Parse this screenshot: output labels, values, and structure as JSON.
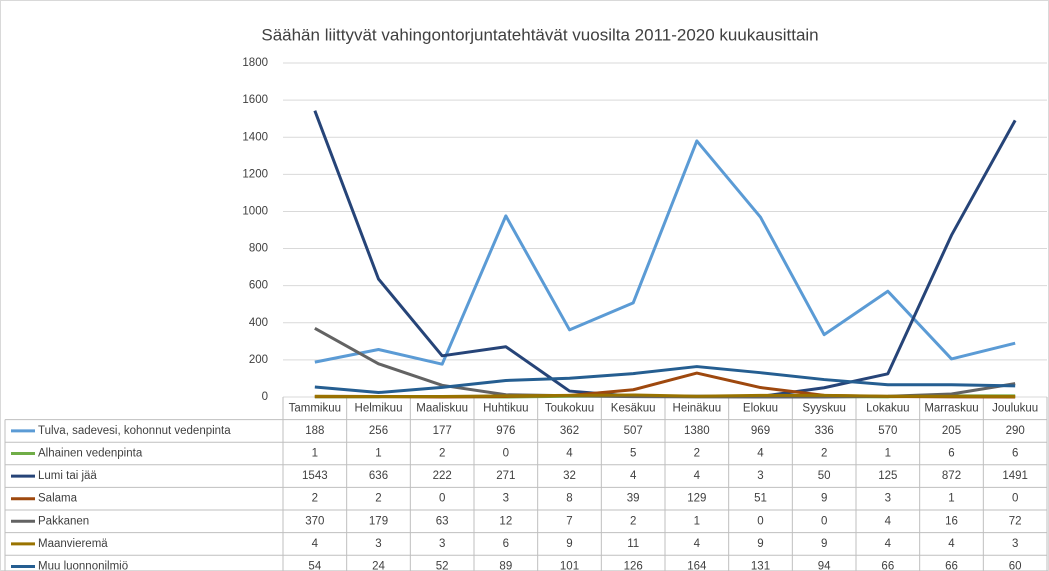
{
  "chart_data": {
    "type": "line",
    "title": "Säähän liittyvät vahingontorjuntatehtävät vuosilta 2011-2020 kuukausittain",
    "categories": [
      "Tammikuu",
      "Helmikuu",
      "Maaliskuu",
      "Huhtikuu",
      "Toukokuu",
      "Kesäkuu",
      "Heinäkuu",
      "Elokuu",
      "Syyskuu",
      "Lokakuu",
      "Marraskuu",
      "Joulukuu"
    ],
    "series": [
      {
        "name": "Tulva, sadevesi, kohonnut vedenpinta",
        "color": "#5b9bd5",
        "values": [
          188,
          256,
          177,
          976,
          362,
          507,
          1380,
          969,
          336,
          570,
          205,
          290
        ]
      },
      {
        "name": "Alhainen vedenpinta",
        "color": "#70ad47",
        "values": [
          1,
          1,
          2,
          0,
          4,
          5,
          2,
          4,
          2,
          1,
          6,
          6
        ]
      },
      {
        "name": "Lumi tai jää",
        "color": "#264478",
        "values": [
          1543,
          636,
          222,
          271,
          32,
          4,
          4,
          3,
          50,
          125,
          872,
          1491
        ]
      },
      {
        "name": "Salama",
        "color": "#9e480e",
        "values": [
          2,
          2,
          0,
          3,
          8,
          39,
          129,
          51,
          9,
          3,
          1,
          0
        ]
      },
      {
        "name": "Pakkanen",
        "color": "#636363",
        "values": [
          370,
          179,
          63,
          12,
          7,
          2,
          1,
          0,
          0,
          4,
          16,
          72
        ]
      },
      {
        "name": "Maanvieremä",
        "color": "#997300",
        "values": [
          4,
          3,
          3,
          6,
          9,
          11,
          4,
          9,
          9,
          4,
          4,
          3
        ]
      },
      {
        "name": "Muu luonnonilmiö",
        "color": "#255e91",
        "values": [
          54,
          24,
          52,
          89,
          101,
          126,
          164,
          131,
          94,
          66,
          66,
          60
        ]
      }
    ],
    "ylim": [
      0,
      1800
    ],
    "yticks": [
      0,
      200,
      400,
      600,
      800,
      1000,
      1200,
      1400,
      1600,
      1800
    ],
    "grid": true
  }
}
